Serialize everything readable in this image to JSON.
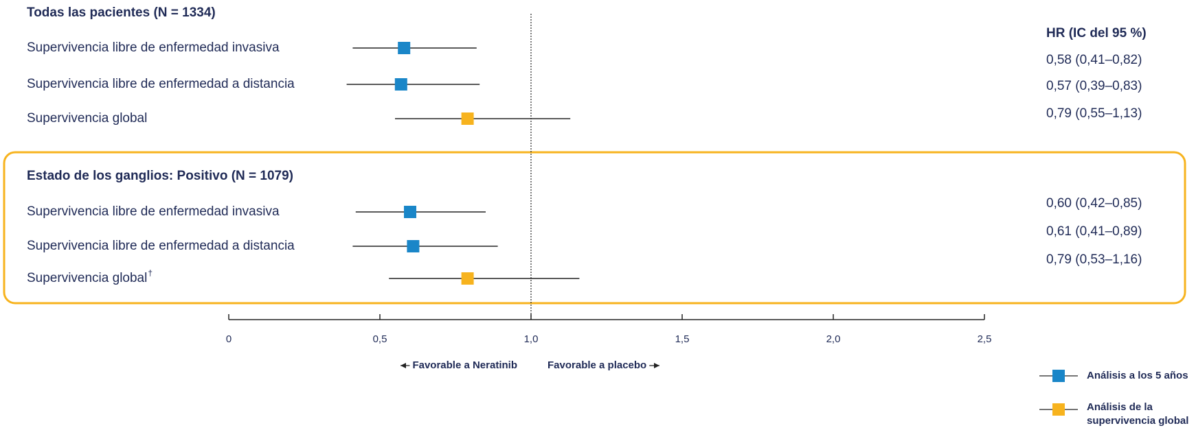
{
  "chart_data": {
    "type": "forest",
    "value_header": "HR (IC del 95 %)",
    "series": [
      {
        "name": "Análisis a los 5 años",
        "color": "#1a86c8"
      },
      {
        "name": "Análisis de la supervivencia global",
        "color": "#f7b31e"
      }
    ],
    "groups": [
      {
        "title": "Todas las pacientes (N = 1334)",
        "boxed": false,
        "rows": [
          {
            "label": "Supervivencia libre de enfermedad invasiva",
            "series": 0,
            "value": 0.58,
            "lo": 0.41,
            "hi": 0.82,
            "value_label": "0,58 (0,41–0,82)"
          },
          {
            "label": "Supervivencia libre de enfermedad a distancia",
            "series": 0,
            "value": 0.57,
            "lo": 0.39,
            "hi": 0.83,
            "value_label": "0,57 (0,39–0,83)"
          },
          {
            "label": "Supervivencia global",
            "series": 1,
            "value": 0.79,
            "lo": 0.55,
            "hi": 1.13,
            "value_label": "0,79 (0,55–1,13)"
          }
        ]
      },
      {
        "title": "Estado de los ganglios: Positivo (N = 1079)",
        "boxed": true,
        "rows": [
          {
            "label": "Supervivencia libre de enfermedad invasiva",
            "series": 0,
            "value": 0.6,
            "lo": 0.42,
            "hi": 0.85,
            "value_label": "0,60 (0,42–0,85)"
          },
          {
            "label": "Supervivencia libre de enfermedad a distancia",
            "series": 0,
            "value": 0.61,
            "lo": 0.41,
            "hi": 0.89,
            "value_label": "0,61 (0,41–0,89)"
          },
          {
            "label": "Supervivencia global",
            "note": "†",
            "series": 1,
            "value": 0.79,
            "lo": 0.53,
            "hi": 1.16,
            "value_label": "0,79 (0,53–1,16)"
          }
        ]
      }
    ],
    "xlim": [
      0,
      2.5
    ],
    "xticks": [
      0,
      {
        "value": 0.5,
        "label": "0,5"
      },
      {
        "value": 1,
        "label": "1,0"
      },
      {
        "value": 1.5,
        "label": "1,5"
      },
      {
        "value": 2,
        "label": "2,0"
      },
      {
        "value": 2.5,
        "label": "2,5"
      }
    ],
    "reference": 1,
    "direction_labels": [
      "Favorable a Neratinib",
      "Favorable a placebo"
    ]
  }
}
